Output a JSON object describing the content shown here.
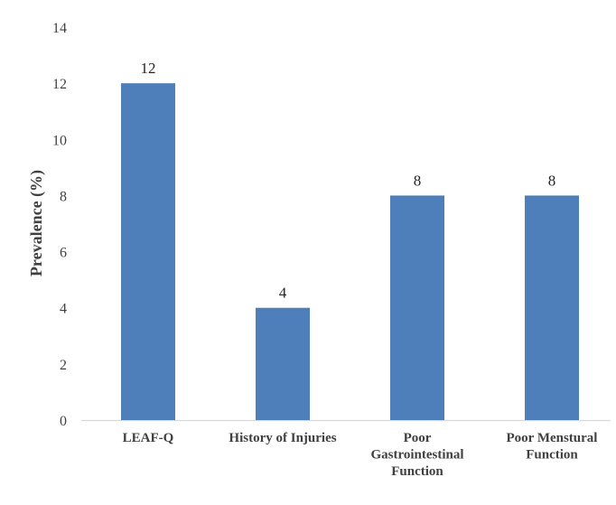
{
  "chart_data": {
    "type": "bar",
    "title": "",
    "xlabel": "",
    "ylabel": "Prevalence (%)",
    "ylim": [
      0,
      14
    ],
    "yticks": [
      0,
      2,
      4,
      6,
      8,
      10,
      12,
      14
    ],
    "grid": false,
    "categories": [
      [
        "LEAF-Q"
      ],
      [
        "History of Injuries"
      ],
      [
        "Poor",
        "Gastrointestinal",
        "Function"
      ],
      [
        "Poor Menstural",
        "Function"
      ]
    ],
    "values": [
      12,
      4,
      8,
      8
    ],
    "data_labels": [
      "12",
      "4",
      "8",
      "8"
    ],
    "colors": {
      "bar": "#4f7fba",
      "axis": "#d9d9d9"
    }
  }
}
